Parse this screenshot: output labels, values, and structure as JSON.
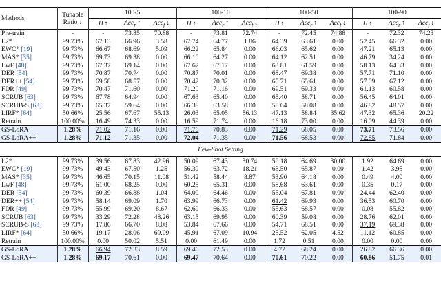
{
  "table": {
    "header": {
      "methods": "Methods",
      "ratio": "Tunable Ratio ↓",
      "groups": [
        "100-5",
        "100-10",
        "100-50",
        "100-90"
      ],
      "metrics": [
        {
          "text": "H",
          "sub": "",
          "arrow": "↑"
        },
        {
          "text": "Acc",
          "sub": "r",
          "arrow": "↑"
        },
        {
          "text": "Acc",
          "sub": "f",
          "arrow": "↓"
        }
      ]
    },
    "full": {
      "rows": [
        {
          "method": "Pre-train",
          "ref": "",
          "ratio": "-",
          "cells": [
            "-",
            "73.85",
            "70.88",
            "-",
            "73.81",
            "72.74",
            "-",
            "72.45",
            "74.88",
            "-",
            "72.32",
            "74.23"
          ]
        },
        {
          "method": "L2*",
          "ref": "",
          "ratio": "99.73%",
          "cells": [
            "67.13",
            "66.96",
            "3.58",
            "67.74",
            "64.77",
            "1.86",
            "64.39",
            "63.61",
            "0.00",
            "52.45",
            "66.32",
            "0.00"
          ]
        },
        {
          "method": "EWC*",
          "ref": "[19]",
          "ratio": "99.73%",
          "cells": [
            "66.67",
            "68.69",
            "5.09",
            "66.22",
            "65.84",
            "0.00",
            "66.03",
            "65.62",
            "0.00",
            "47.21",
            "65.13",
            "0.00"
          ]
        },
        {
          "method": "MAS*",
          "ref": "[35]",
          "ratio": "99.73%",
          "cells": [
            "69.73",
            "69.38",
            "0.00",
            "66.10",
            "64.27",
            "0.00",
            "64.12",
            "62.51",
            "0.00",
            "46.79",
            "34.24",
            "0.00"
          ]
        },
        {
          "method": "LwF",
          "ref": "[48]",
          "ratio": "99.73%",
          "cells": [
            "67.37",
            "69.14",
            "0.00",
            "67.62",
            "67.17",
            "0.00",
            "63.81",
            "61.59",
            "0.00",
            "58.13",
            "64.33",
            "0.00"
          ]
        },
        {
          "method": "DER",
          "ref": "[54]",
          "ratio": "99.73%",
          "cells": [
            "70.87",
            "70.74",
            "0.00",
            "70.87",
            "70.01",
            "0.00",
            "68.47",
            "69.38",
            "0.00",
            "57.71",
            "71.10",
            "0.00"
          ]
        },
        {
          "method": "DER++",
          "ref": "[54]",
          "ratio": "99.73%",
          "cells": [
            "69.58",
            "68.57",
            "0.00",
            "70.42",
            "70.32",
            "0.00",
            "65.71",
            "65.61",
            "0.00",
            "57.09",
            "67.12",
            "0.00"
          ]
        },
        {
          "method": "FDR",
          "ref": "[49]",
          "ratio": "99.73%",
          "cells": [
            "70.47",
            "71.60",
            "0.00",
            "71.20",
            "71.16",
            "0.00",
            "69.51",
            "69.33",
            "0.00",
            "61.13",
            "60.58",
            "0.00"
          ]
        },
        {
          "method": "SCRUB",
          "ref": "[63]",
          "ratio": "99.73%",
          "cells": [
            "67.78",
            "64.94",
            "0.00",
            "67.63",
            "65.40",
            "0.00",
            "65.40",
            "58.71",
            "0.00",
            "56.45",
            "64.01",
            "0.00"
          ]
        },
        {
          "method": "SCRUB-S",
          "ref": "[63]",
          "ratio": "99.73%",
          "cells": [
            "65.37",
            "59.64",
            "0.00",
            "66.38",
            "63.58",
            "0.00",
            "58.64",
            "58.08",
            "0.00",
            "46.82",
            "48.57",
            "0.00"
          ]
        },
        {
          "method": "LIRF*",
          "ref": "[64]",
          "ratio": "50.66%",
          "cells": [
            "25.56",
            "67.67",
            "55.13",
            "26.03",
            "65.05",
            "56.13",
            "47.13",
            "58.84",
            "35.62",
            "47.32",
            "65.36",
            "20.22"
          ]
        },
        {
          "method": "Retrain",
          "ref": "",
          "ratio": "100.00%",
          "cells": [
            "16.49",
            "74.33",
            "0.00",
            "16.59",
            "71.74",
            "0.00",
            "16.18",
            "73.00",
            "0.00",
            "16.09",
            "44.39",
            "0.00"
          ]
        },
        {
          "method": "GS-LoRA",
          "ref": "",
          "ratio": {
            "text": "1.28%",
            "style": "bold"
          },
          "highlight": true,
          "cells": [
            {
              "text": "71.02",
              "style": "underline"
            },
            "71.16",
            "0.00",
            {
              "text": "71.76",
              "style": "underline"
            },
            "70.83",
            "0.00",
            {
              "text": "71.29",
              "style": "underline"
            },
            "68.05",
            "0.00",
            {
              "text": "73.71",
              "style": "bold"
            },
            "73.56",
            "0.00"
          ]
        },
        {
          "method": "GS-LoRA++",
          "ref": "",
          "ratio": {
            "text": "1.28%",
            "style": "bold"
          },
          "highlight": true,
          "cells": [
            {
              "text": "71.12",
              "style": "bold"
            },
            "71.35",
            "0.00",
            {
              "text": "72.04",
              "style": "bold"
            },
            "71.35",
            "0.00",
            {
              "text": "71.56",
              "style": "bold"
            },
            "68.53",
            "0.00",
            {
              "text": "72.85",
              "style": "underline"
            },
            "71.84",
            "0.00"
          ]
        }
      ]
    },
    "fewshot": {
      "title": "Few-Shot Setting",
      "rows": [
        {
          "method": "L2*",
          "ref": "",
          "ratio": "99.73%",
          "cells": [
            "39.56",
            "67.83",
            "42.96",
            "50.09",
            "67.43",
            "30.74",
            "50.18",
            "64.69",
            "30.00",
            "1.92",
            "64.69",
            "0.00"
          ]
        },
        {
          "method": "EWC*",
          "ref": "[19]",
          "ratio": "99.73%",
          "cells": [
            "49.43",
            "67.50",
            "1.25",
            "56.39",
            "63.72",
            "18.21",
            "63.50",
            "65.87",
            "0.00",
            "1.42",
            "3.95",
            "0.00"
          ]
        },
        {
          "method": "MAS*",
          "ref": "[35]",
          "ratio": "99.73%",
          "cells": [
            "46.65",
            "70.15",
            "11.08",
            "51.42",
            "58.44",
            "8.87",
            "53.90",
            "64.18",
            "0.00",
            "0.49",
            "4.00",
            "0.00"
          ]
        },
        {
          "method": "LwF",
          "ref": "[48]",
          "ratio": "99.73%",
          "cells": [
            "61.00",
            "68.25",
            "0.00",
            "60.25",
            "65.31",
            "0.00",
            "58.68",
            "63.61",
            "0.00",
            "0.35",
            "0.17",
            "0.00"
          ]
        },
        {
          "method": "DER",
          "ref": "[54]",
          "ratio": "99.73%",
          "cells": [
            "60.39",
            "66.88",
            "1.04",
            {
              "text": "64.09",
              "style": "underline"
            },
            "64.46",
            "0.00",
            "55.04",
            "67.81",
            "0.00",
            "24.44",
            "62.40",
            "0.00"
          ]
        },
        {
          "method": "DER++",
          "ref": "[54]",
          "ratio": "99.73%",
          "cells": [
            "58.14",
            "69.09",
            "1.70",
            "63.99",
            "66.73",
            "0.00",
            {
              "text": "61.42",
              "style": "underline"
            },
            "69.93",
            "0.00",
            "36.53",
            "60.70",
            "0.00"
          ]
        },
        {
          "method": "FDR",
          "ref": "[49]",
          "ratio": "99.73%",
          "cells": [
            "55.99",
            "69.20",
            "8.67",
            "62.69",
            "66.33",
            "0.00",
            "55.63",
            "68.57",
            "0.00",
            "0.08",
            "55.82",
            "0.00"
          ]
        },
        {
          "method": "SCRUB",
          "ref": "[63]",
          "ratio": "99.73%",
          "cells": [
            "33.29",
            "72.28",
            "48.26",
            "63.15",
            "69.95",
            "0.00",
            "60.39",
            "59.08",
            "0.00",
            "28.76",
            "62.01",
            "0.00"
          ]
        },
        {
          "method": "SCRUB-S",
          "ref": "[63]",
          "ratio": "99.73%",
          "cells": [
            "17.86",
            "66.70",
            "8.08",
            "53.84",
            "67.66",
            "0.00",
            "54.71",
            "68.51",
            "0.00",
            {
              "text": "37.19",
              "style": "underline"
            },
            "69.38",
            "0.00"
          ]
        },
        {
          "method": "LIRF*",
          "ref": "[64]",
          "ratio": "50.66%",
          "cells": [
            "19.17",
            "28.06",
            "69.09",
            "45.91",
            "67.09",
            "10.94",
            "25.52",
            "62.05",
            "4.52",
            "11.12",
            "60.85",
            "0.00"
          ]
        },
        {
          "method": "Retrain",
          "ref": "",
          "ratio": "100.00%",
          "cells": [
            "0.00",
            "50.02",
            "5.51",
            "0.00",
            "61.49",
            "0.00",
            "1.72",
            "0.51",
            "0.00",
            "0.00",
            "0.00",
            "0.00"
          ]
        },
        {
          "method": "GS-LoRA",
          "ref": "",
          "ratio": {
            "text": "1.28%",
            "style": "bold"
          },
          "highlight": true,
          "cells": [
            {
              "text": "66.94",
              "style": "underline"
            },
            "72.33",
            "8.59",
            "69.46",
            "72.53",
            "0.00",
            "4.72",
            "68.24",
            "0.00",
            "26.82",
            "66.36",
            "0.00"
          ]
        },
        {
          "method": "GS-LoRA++",
          "ref": "",
          "ratio": {
            "text": "1.28%",
            "style": "bold"
          },
          "highlight": true,
          "cells": [
            {
              "text": "69.17",
              "style": "bold"
            },
            "70.61",
            "0.00",
            {
              "text": "69.47",
              "style": "bold"
            },
            "70.64",
            "0.00",
            {
              "text": "70.61",
              "style": "bold"
            },
            "70.22",
            "0.00",
            {
              "text": "60.86",
              "style": "bold"
            },
            "51.75",
            "0.01"
          ]
        }
      ]
    }
  }
}
